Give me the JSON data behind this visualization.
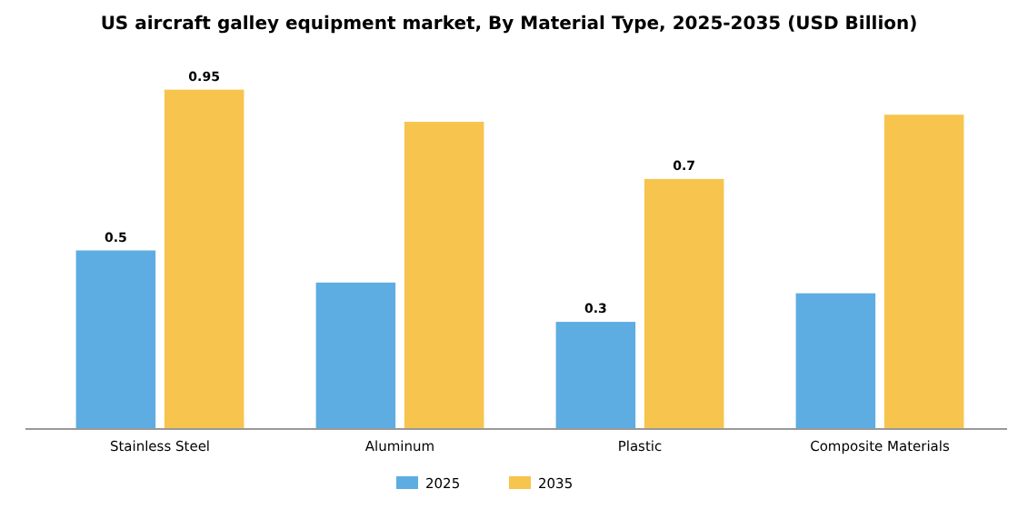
{
  "chart_data": {
    "type": "bar",
    "title": "US aircraft galley equipment market, By Material Type, 2025-2035 (USD Billion)",
    "categories": [
      "Stainless Steel",
      "Aluminum",
      "Plastic",
      "Composite Materials"
    ],
    "series": [
      {
        "name": "2025",
        "color": "#5dade2",
        "values": [
          0.5,
          0.41,
          0.3,
          0.38
        ],
        "value_labels": [
          "0.5",
          null,
          "0.3",
          null
        ]
      },
      {
        "name": "2035",
        "color": "#f7c44e",
        "values": [
          0.95,
          0.86,
          0.7,
          0.88
        ],
        "value_labels": [
          "0.95",
          null,
          "0.7",
          null
        ]
      }
    ],
    "legend": "bottom"
  }
}
